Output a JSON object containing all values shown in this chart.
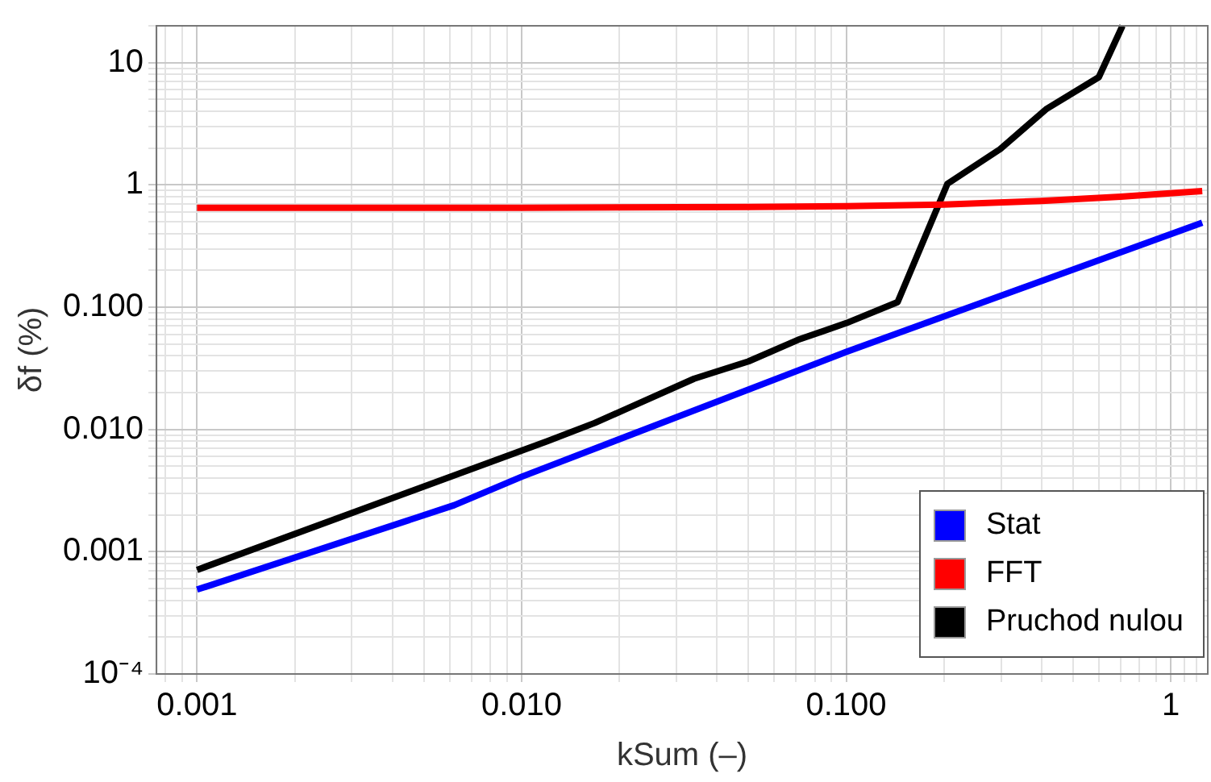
{
  "chart_data": {
    "type": "line",
    "xlabel": "kSum (–)",
    "ylabel": "δf (%)",
    "log": "xy",
    "grid": true,
    "legend": "bottom right",
    "marker": "none",
    "line_style": "solid",
    "xlim": [
      0.00075,
      1.3
    ],
    "ylim": [
      0.0001,
      20
    ],
    "xticks": [
      {
        "value": 0.0008,
        "label": null
      },
      {
        "value": 0.0009,
        "label": null
      },
      {
        "value": 0.001,
        "label": "0.001"
      },
      {
        "value": 0.002,
        "label": null
      },
      {
        "value": 0.003,
        "label": null
      },
      {
        "value": 0.004,
        "label": null
      },
      {
        "value": 0.005,
        "label": null
      },
      {
        "value": 0.006,
        "label": null
      },
      {
        "value": 0.007,
        "label": null
      },
      {
        "value": 0.008,
        "label": null
      },
      {
        "value": 0.009,
        "label": null
      },
      {
        "value": 0.01,
        "label": "0.010"
      },
      {
        "value": 0.02,
        "label": null
      },
      {
        "value": 0.03,
        "label": null
      },
      {
        "value": 0.04,
        "label": null
      },
      {
        "value": 0.05,
        "label": null
      },
      {
        "value": 0.06,
        "label": null
      },
      {
        "value": 0.07,
        "label": null
      },
      {
        "value": 0.08,
        "label": null
      },
      {
        "value": 0.09,
        "label": null
      },
      {
        "value": 0.1,
        "label": "0.100"
      },
      {
        "value": 0.2,
        "label": null
      },
      {
        "value": 0.3,
        "label": null
      },
      {
        "value": 0.4,
        "label": null
      },
      {
        "value": 0.5,
        "label": null
      },
      {
        "value": 0.6,
        "label": null
      },
      {
        "value": 0.7,
        "label": null
      },
      {
        "value": 0.8,
        "label": null
      },
      {
        "value": 0.9,
        "label": null
      },
      1,
      {
        "value": 1.1,
        "label": null
      },
      {
        "value": 1.2,
        "label": null
      }
    ],
    "yticks": [
      {
        "value": 0.0001,
        "label": "10⁻⁴"
      },
      {
        "value": 0.0002,
        "label": null
      },
      {
        "value": 0.0003,
        "label": null
      },
      {
        "value": 0.0004,
        "label": null
      },
      {
        "value": 0.0005,
        "label": null
      },
      {
        "value": 0.0006,
        "label": null
      },
      {
        "value": 0.0007,
        "label": null
      },
      {
        "value": 0.0008,
        "label": null
      },
      {
        "value": 0.0009,
        "label": null
      },
      {
        "value": 0.001,
        "label": "0.001"
      },
      {
        "value": 0.002,
        "label": null
      },
      {
        "value": 0.003,
        "label": null
      },
      {
        "value": 0.004,
        "label": null
      },
      {
        "value": 0.005,
        "label": null
      },
      {
        "value": 0.006,
        "label": null
      },
      {
        "value": 0.007,
        "label": null
      },
      {
        "value": 0.008,
        "label": null
      },
      {
        "value": 0.009,
        "label": null
      },
      {
        "value": 0.01,
        "label": "0.010"
      },
      {
        "value": 0.02,
        "label": null
      },
      {
        "value": 0.03,
        "label": null
      },
      {
        "value": 0.04,
        "label": null
      },
      {
        "value": 0.05,
        "label": null
      },
      {
        "value": 0.06,
        "label": null
      },
      {
        "value": 0.07,
        "label": null
      },
      {
        "value": 0.08,
        "label": null
      },
      {
        "value": 0.09,
        "label": null
      },
      {
        "value": 0.1,
        "label": "0.100"
      },
      {
        "value": 0.2,
        "label": null
      },
      {
        "value": 0.3,
        "label": null
      },
      {
        "value": 0.4,
        "label": null
      },
      {
        "value": 0.5,
        "label": null
      },
      {
        "value": 0.6,
        "label": null
      },
      {
        "value": 0.7,
        "label": null
      },
      {
        "value": 0.8,
        "label": null
      },
      {
        "value": 0.9,
        "label": null
      },
      1,
      {
        "value": 2,
        "label": null
      },
      {
        "value": 3,
        "label": null
      },
      {
        "value": 4,
        "label": null
      },
      {
        "value": 5,
        "label": null
      },
      {
        "value": 6,
        "label": null
      },
      {
        "value": 7,
        "label": null
      },
      {
        "value": 8,
        "label": null
      },
      {
        "value": 9,
        "label": null
      },
      10,
      {
        "value": 20,
        "label": null
      }
    ],
    "series": [
      {
        "name": "Stat",
        "color": "#0000ff",
        "x": [
          0.001,
          0.0062,
          0.01,
          0.1,
          1.25
        ],
        "values": [
          0.00049,
          0.0024,
          0.0041,
          0.043,
          0.49
        ]
      },
      {
        "name": "FFT",
        "color": "#ff0000",
        "x": [
          0.001,
          0.01,
          0.05,
          0.1,
          0.2,
          0.4,
          0.7,
          1.25
        ],
        "values": [
          0.65,
          0.65,
          0.66,
          0.67,
          0.69,
          0.74,
          0.8,
          0.89
        ]
      },
      {
        "name": "Pruchod nulou",
        "color": "#000000",
        "x": [
          0.001,
          0.012,
          0.0168,
          0.034,
          0.05,
          0.071,
          0.1,
          0.144,
          0.205,
          0.298,
          0.415,
          0.6,
          0.71
        ],
        "values": [
          0.00071,
          0.008,
          0.0113,
          0.026,
          0.036,
          0.054,
          0.074,
          0.11,
          1.02,
          1.96,
          4.2,
          7.6,
          20
        ]
      }
    ]
  }
}
